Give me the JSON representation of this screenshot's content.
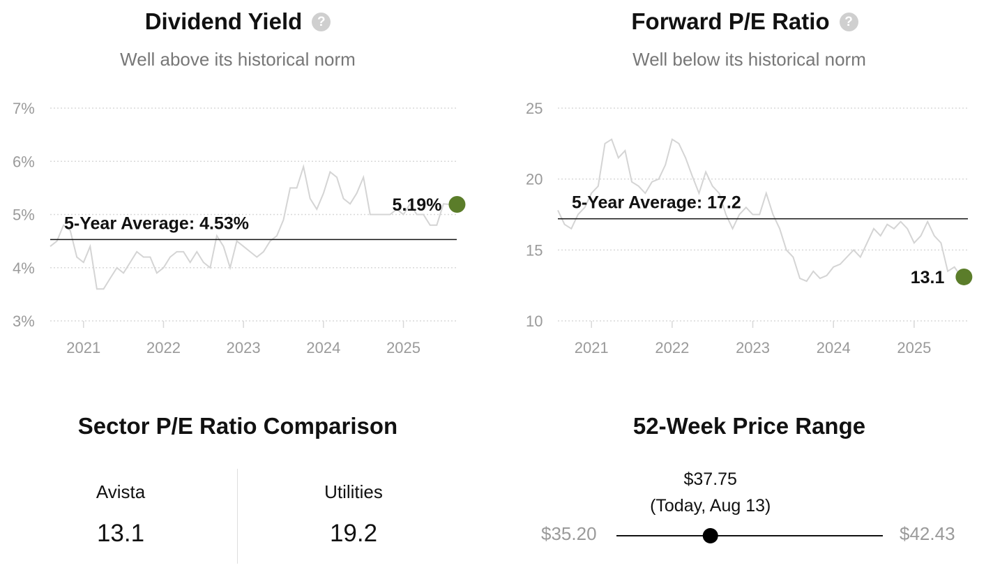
{
  "chart_data": [
    {
      "type": "line",
      "title": "Dividend Yield",
      "subtitle": "Well above its historical norm",
      "yticks": [
        "7%",
        "6%",
        "5%",
        "4%",
        "3%"
      ],
      "ytick_values": [
        7,
        6,
        5,
        4,
        3
      ],
      "ylim": [
        3,
        7
      ],
      "xticks": [
        "2021",
        "2022",
        "2023",
        "2024",
        "2025"
      ],
      "xlim": [
        "2020-08",
        "2025-09"
      ],
      "average_label": "5-Year Average: 4.53%",
      "average_value": 4.53,
      "current_label": "5.19%",
      "current_value": 5.19,
      "series": [
        {
          "x": [
            "2020-08",
            "2020-09",
            "2020-10",
            "2020-11",
            "2020-12",
            "2021-01",
            "2021-02",
            "2021-03",
            "2021-04",
            "2021-05",
            "2021-06",
            "2021-07",
            "2021-08",
            "2021-09",
            "2021-10",
            "2021-11",
            "2021-12",
            "2022-01",
            "2022-02",
            "2022-03",
            "2022-04",
            "2022-05",
            "2022-06",
            "2022-07",
            "2022-08",
            "2022-09",
            "2022-10",
            "2022-11",
            "2022-12",
            "2023-01",
            "2023-02",
            "2023-03",
            "2023-04",
            "2023-05",
            "2023-06",
            "2023-07",
            "2023-08",
            "2023-09",
            "2023-10",
            "2023-11",
            "2023-12",
            "2024-01",
            "2024-02",
            "2024-03",
            "2024-04",
            "2024-05",
            "2024-06",
            "2024-07",
            "2024-08",
            "2024-09",
            "2024-10",
            "2024-11",
            "2024-12",
            "2025-01",
            "2025-02",
            "2025-03",
            "2025-04",
            "2025-05",
            "2025-06",
            "2025-07",
            "2025-08"
          ],
          "values": [
            4.4,
            4.5,
            4.8,
            4.7,
            4.2,
            4.1,
            4.4,
            3.6,
            3.6,
            3.8,
            4.0,
            3.9,
            4.1,
            4.3,
            4.2,
            4.2,
            3.9,
            4.0,
            4.2,
            4.3,
            4.3,
            4.1,
            4.3,
            4.1,
            4.0,
            4.6,
            4.4,
            4.0,
            4.5,
            4.4,
            4.3,
            4.2,
            4.3,
            4.5,
            4.6,
            4.9,
            5.5,
            5.5,
            5.9,
            5.3,
            5.1,
            5.4,
            5.8,
            5.7,
            5.3,
            5.2,
            5.4,
            5.7,
            5.0,
            5.0,
            5.0,
            5.0,
            5.1,
            5.0,
            5.2,
            5.0,
            5.0,
            4.8,
            4.8,
            5.2,
            5.19
          ]
        }
      ]
    },
    {
      "type": "line",
      "title": "Forward P/E Ratio",
      "subtitle": "Well below its historical norm",
      "yticks": [
        "25",
        "20",
        "15",
        "10"
      ],
      "ytick_values": [
        25,
        20,
        15,
        10
      ],
      "ylim": [
        10,
        25
      ],
      "xticks": [
        "2021",
        "2022",
        "2023",
        "2024",
        "2025"
      ],
      "xlim": [
        "2020-08",
        "2025-09"
      ],
      "average_label": "5-Year Average: 17.2",
      "average_value": 17.2,
      "current_label": "13.1",
      "current_value": 13.1,
      "series": [
        {
          "x": [
            "2020-08",
            "2020-09",
            "2020-10",
            "2020-11",
            "2020-12",
            "2021-01",
            "2021-02",
            "2021-03",
            "2021-04",
            "2021-05",
            "2021-06",
            "2021-07",
            "2021-08",
            "2021-09",
            "2021-10",
            "2021-11",
            "2021-12",
            "2022-01",
            "2022-02",
            "2022-03",
            "2022-04",
            "2022-05",
            "2022-06",
            "2022-07",
            "2022-08",
            "2022-09",
            "2022-10",
            "2022-11",
            "2022-12",
            "2023-01",
            "2023-02",
            "2023-03",
            "2023-04",
            "2023-05",
            "2023-06",
            "2023-07",
            "2023-08",
            "2023-09",
            "2023-10",
            "2023-11",
            "2023-12",
            "2024-01",
            "2024-02",
            "2024-03",
            "2024-04",
            "2024-05",
            "2024-06",
            "2024-07",
            "2024-08",
            "2024-09",
            "2024-10",
            "2024-11",
            "2024-12",
            "2025-01",
            "2025-02",
            "2025-03",
            "2025-04",
            "2025-05",
            "2025-06",
            "2025-07",
            "2025-08"
          ],
          "values": [
            17.8,
            16.8,
            16.5,
            17.5,
            18.0,
            19.0,
            19.5,
            22.5,
            22.8,
            21.5,
            22.0,
            19.8,
            19.5,
            19.0,
            19.8,
            20.0,
            21.0,
            22.8,
            22.5,
            21.5,
            20.2,
            19.0,
            20.5,
            19.5,
            19.0,
            17.5,
            16.5,
            17.5,
            18.0,
            17.5,
            17.5,
            19.0,
            17.5,
            16.5,
            15.0,
            14.5,
            13.0,
            12.8,
            13.5,
            13.0,
            13.2,
            13.8,
            14.0,
            14.5,
            15.0,
            14.5,
            15.5,
            16.5,
            16.0,
            16.8,
            16.5,
            17.0,
            16.5,
            15.5,
            16.0,
            17.0,
            16.0,
            15.5,
            13.5,
            13.8,
            13.1
          ]
        }
      ]
    }
  ],
  "sector": {
    "title": "Sector P/E Ratio Comparison",
    "company_label": "Avista",
    "company_value": "13.1",
    "sector_label": "Utilities",
    "sector_value": "19.2"
  },
  "price_range": {
    "title": "52-Week Price Range",
    "low": "$35.20",
    "high": "$42.43",
    "low_value": 35.2,
    "high_value": 42.43,
    "current_value": 37.75,
    "current_label": "$37.75",
    "current_date": "(Today, Aug 13)"
  },
  "colors": {
    "marker": "#5b7d2a",
    "line": "#d4d4d4",
    "grid": "#d8d8d8",
    "axis_text": "#9a9a9a"
  },
  "icons": {
    "help": "question-circle-icon"
  },
  "help_glyph": "?"
}
